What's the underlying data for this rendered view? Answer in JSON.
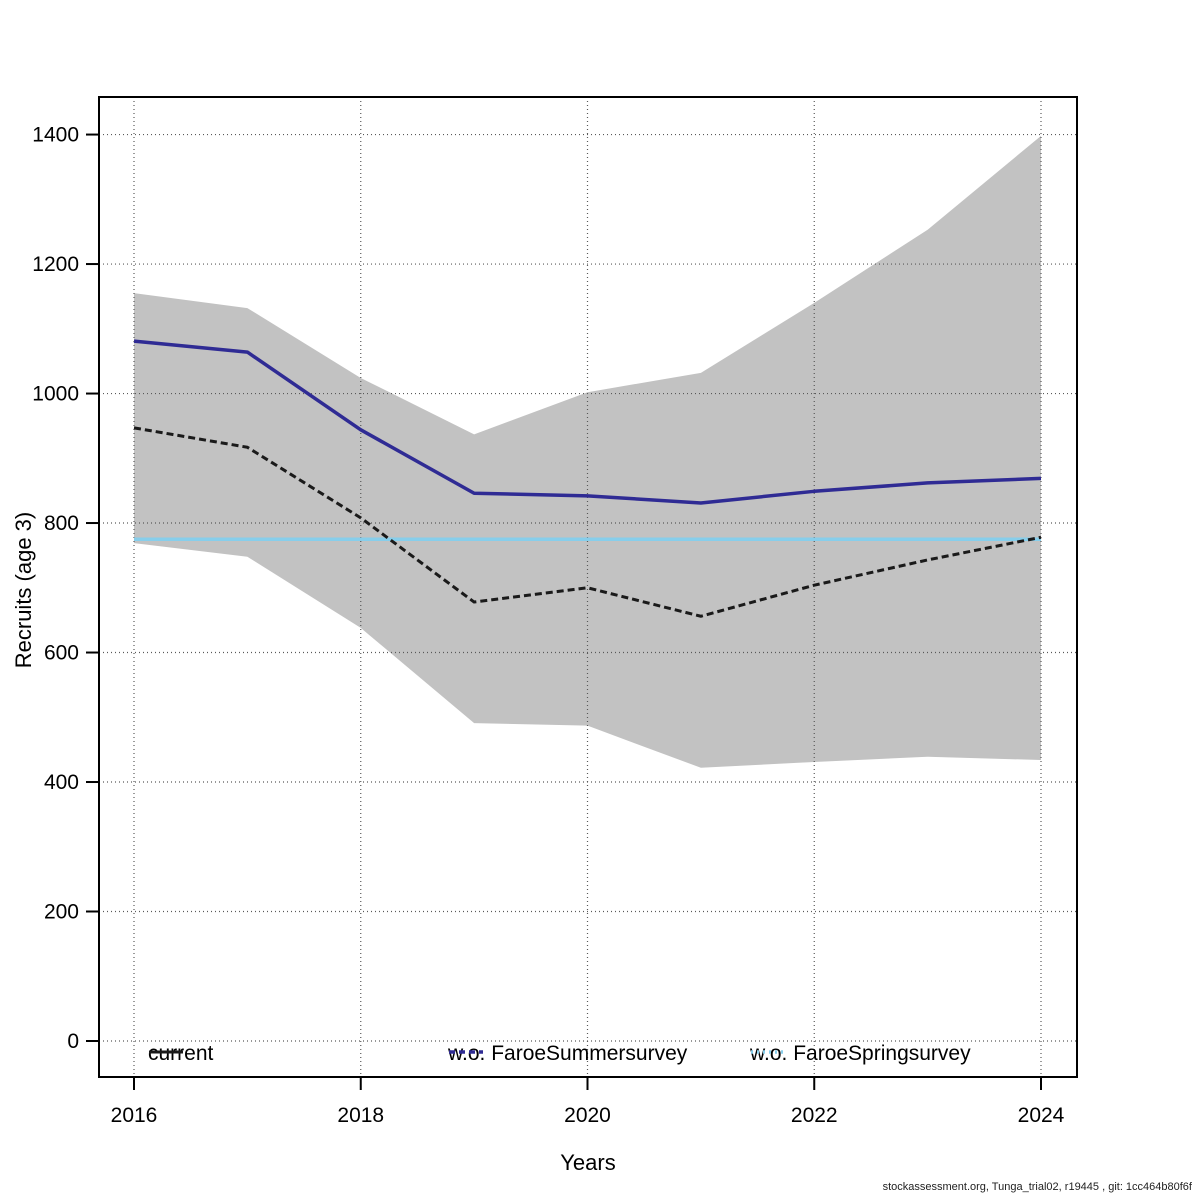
{
  "footer": {
    "text": "stockassessment.org, Tunga_trial02, r19445 , git: 1cc464b80f6f"
  },
  "chart_data": {
    "type": "line",
    "title": "",
    "xlabel": "Years",
    "ylabel": "Recruits (age 3)",
    "x": [
      2016,
      2017,
      2018,
      2019,
      2020,
      2021,
      2022,
      2023,
      2024
    ],
    "x_ticks": [
      2016,
      2018,
      2020,
      2022,
      2024
    ],
    "y_ticks": [
      0,
      200,
      400,
      600,
      800,
      1000,
      1200,
      1400
    ],
    "xlim": [
      2015.7,
      2024.3
    ],
    "ylim": [
      0,
      1450
    ],
    "grid": true,
    "legend_position": "bottom",
    "series": [
      {
        "name": "current",
        "color": "#1a1a1a",
        "width": 3,
        "line_style": "dashed",
        "legend_style": "solid",
        "values": [
          947,
          917,
          808,
          678,
          700,
          656,
          704,
          743,
          778
        ]
      },
      {
        "name": "w.o. FaroeSummersurvey",
        "color": "#2f2b94",
        "width": 3.5,
        "line_style": "solid",
        "legend_style": "dashed",
        "values": [
          1081,
          1064,
          944,
          846,
          842,
          831,
          849,
          862,
          869
        ]
      },
      {
        "name": "w.o. FaroeSpringsurvey",
        "color": "#87ceeb",
        "width": 3.5,
        "line_style": "solid",
        "legend_style": "dotted",
        "values": [
          775,
          775,
          775,
          775,
          775,
          775,
          775,
          775,
          775
        ]
      }
    ],
    "confidence_band": {
      "series": "current",
      "color": "#c2c2c2",
      "upper": [
        1155,
        1132,
        1024,
        937,
        1002,
        1032,
        1140,
        1253,
        1398
      ],
      "lower": [
        769,
        748,
        638,
        491,
        487,
        422,
        431,
        439,
        434
      ]
    }
  }
}
